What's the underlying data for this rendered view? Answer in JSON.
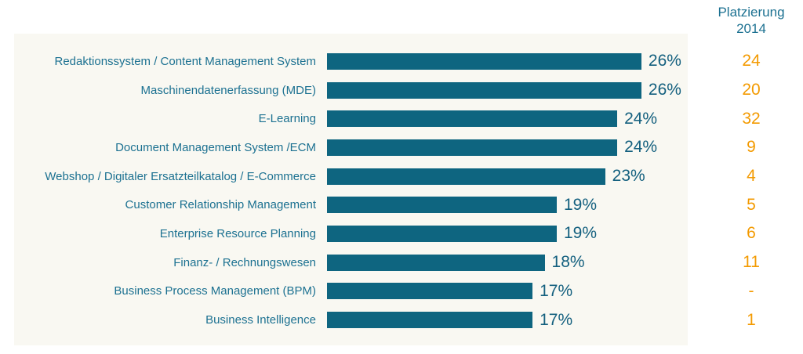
{
  "header": {
    "placement_column_title": "Platzierung\n2014"
  },
  "chart_data": {
    "type": "bar",
    "orientation": "horizontal",
    "title": "",
    "xlabel": "",
    "ylabel": "",
    "unit": "%",
    "xlim": [
      0,
      26
    ],
    "grid": false,
    "legend": "none",
    "categories": [
      "Redaktionssystem / Content Management System",
      "Maschinendatenerfassung (MDE)",
      "E-Learning",
      "Document Management System /ECM",
      "Webshop / Digitaler Ersatzteilkatalog / E-Commerce",
      "Customer Relationship Management",
      "Enterprise Resource Planning",
      "Finanz- / Rechnungswesen",
      "Business Process Management (BPM)",
      "Business Intelligence"
    ],
    "values": [
      26,
      26,
      24,
      24,
      23,
      19,
      19,
      18,
      17,
      17
    ],
    "value_labels": [
      "26%",
      "26%",
      "24%",
      "24%",
      "23%",
      "19%",
      "19%",
      "18%",
      "17%",
      "17%"
    ],
    "placement_2014": [
      "24",
      "20",
      "32",
      "9",
      "4",
      "5",
      "6",
      "11",
      "-",
      "1"
    ],
    "placement_column_title": "Platzierung 2014",
    "colors": {
      "bar": "#0e6580",
      "category_text": "#1c7191",
      "value_text": "#14607f",
      "placement_text": "#f39a00",
      "panel_background": "#f9f8f2",
      "page_background": "#ffffff"
    }
  }
}
